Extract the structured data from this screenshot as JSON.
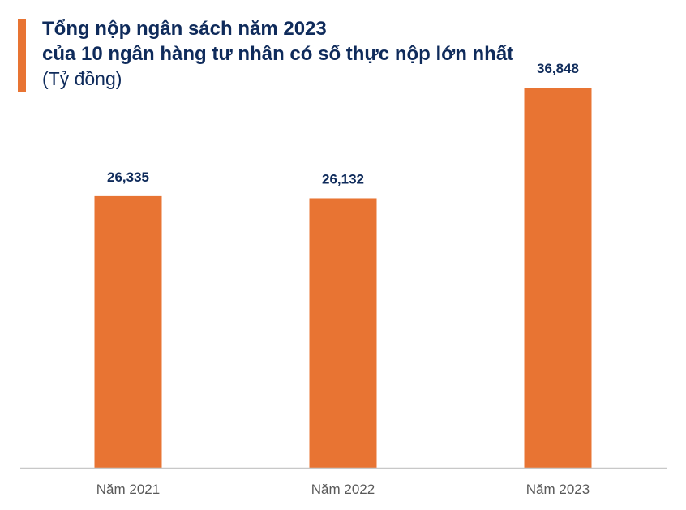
{
  "header": {
    "title_line1": "Tổng nộp ngân sách năm 2023",
    "title_line2": "của 10 ngân hàng tư nhân có số thực nộp lớn nhất",
    "unit": "(Tỷ đồng)"
  },
  "colors": {
    "accent": "#e87433",
    "bar": "#e87433",
    "title": "#0f2b5b",
    "axis_line": "#c8c8c8",
    "tick_text": "#595959"
  },
  "chart_data": {
    "type": "bar",
    "title": "Tổng nộp ngân sách năm 2023 của 10 ngân hàng tư nhân có số thực nộp lớn nhất",
    "subtitle": "(Tỷ đồng)",
    "categories": [
      "Năm 2021",
      "Năm 2022",
      "Năm 2023"
    ],
    "values": [
      26335,
      26132,
      36848
    ],
    "data_labels": [
      "26,335",
      "26,132",
      "36,848"
    ],
    "xlabel": "",
    "ylabel": "",
    "ylim": [
      0,
      40000
    ],
    "grid": false,
    "legend": "none"
  }
}
